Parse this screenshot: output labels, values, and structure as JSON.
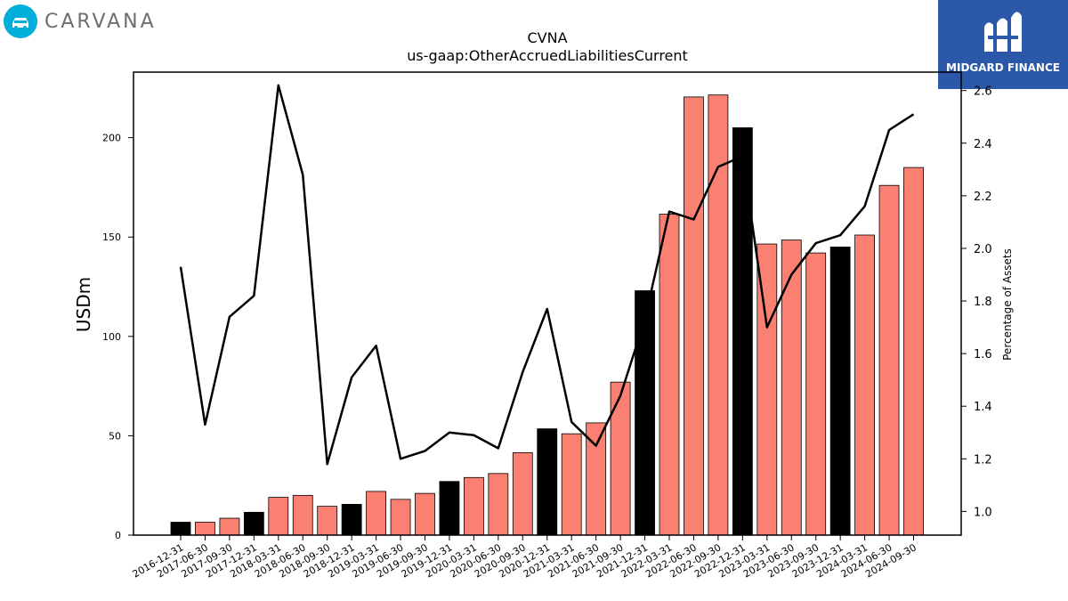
{
  "brand": {
    "left_logo_text": "CARVANA",
    "right_logo_text": "MIDGARD FINANCE"
  },
  "colors": {
    "bar_default": "#fa8072",
    "bar_highlight": "#000000",
    "line": "#000000"
  },
  "chart_data": {
    "type": "bar",
    "title": "CVNA",
    "subtitle": "us-gaap:OtherAccruedLiabilitiesCurrent",
    "ylabel": "USDm",
    "y2label": "Percentage of Assets",
    "ylim": [
      0,
      233
    ],
    "y2lim": [
      0.91,
      2.67
    ],
    "yticks": [
      0,
      50,
      100,
      150,
      200
    ],
    "y2ticks": [
      1.0,
      1.2,
      1.4,
      1.6,
      1.8,
      2.0,
      2.2,
      2.4,
      2.6
    ],
    "y2ticklabels": [
      "1.0",
      "1.2",
      "1.4",
      "1.6",
      "1.8",
      "2.0",
      "2.2",
      "2.4",
      "2.6"
    ],
    "categories": [
      "2016-12-31",
      "2017-06-30",
      "2017-09-30",
      "2017-12-31",
      "2018-03-31",
      "2018-06-30",
      "2018-09-30",
      "2018-12-31",
      "2019-03-31",
      "2019-06-30",
      "2019-09-30",
      "2019-12-31",
      "2020-03-31",
      "2020-06-30",
      "2020-09-30",
      "2020-12-31",
      "2021-03-31",
      "2021-06-30",
      "2021-09-30",
      "2021-12-31",
      "2022-03-31",
      "2022-06-30",
      "2022-09-30",
      "2022-12-31",
      "2023-03-31",
      "2023-06-30",
      "2023-09-30",
      "2023-12-31",
      "2024-03-31",
      "2024-06-30",
      "2024-09-30"
    ],
    "series": [
      {
        "kind": "bar",
        "values": [
          6.5,
          6.5,
          8.5,
          11.5,
          19,
          20,
          14.5,
          15.5,
          22,
          18,
          21,
          27,
          29,
          31,
          41.5,
          53.5,
          51,
          56.5,
          77,
          123,
          161.5,
          220.5,
          221.5,
          205,
          146.5,
          148.5,
          142,
          145,
          151,
          176,
          185
        ],
        "highlight": [
          true,
          false,
          false,
          true,
          false,
          false,
          false,
          true,
          false,
          false,
          false,
          true,
          false,
          false,
          false,
          true,
          false,
          false,
          false,
          true,
          false,
          false,
          false,
          true,
          false,
          false,
          false,
          true,
          false,
          false,
          false
        ]
      },
      {
        "kind": "line",
        "axis": "right",
        "values": [
          1.93,
          1.33,
          1.74,
          1.82,
          2.62,
          2.28,
          1.18,
          1.51,
          1.63,
          1.2,
          1.23,
          1.3,
          1.29,
          1.24,
          1.53,
          1.77,
          1.34,
          1.25,
          1.44,
          1.73,
          2.14,
          2.11,
          2.31,
          2.35,
          1.7,
          1.9,
          2.02,
          2.05,
          2.16,
          2.45,
          2.51
        ]
      }
    ],
    "legend": "none",
    "grid": false
  }
}
